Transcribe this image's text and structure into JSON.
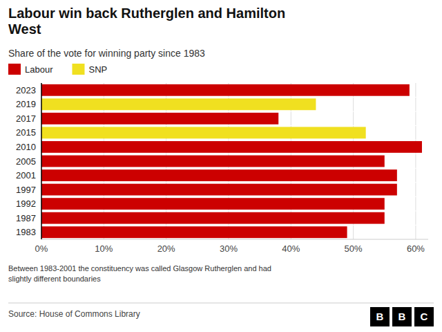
{
  "chart_data": {
    "type": "bar",
    "orientation": "horizontal",
    "title": "Labour win back Rutherglen and Hamilton\nWest",
    "subtitle": "Share of the vote for winning party since 1983",
    "categories": [
      "2023",
      "2019",
      "2017",
      "2015",
      "2010",
      "2005",
      "2001",
      "1997",
      "1992",
      "1987",
      "1983"
    ],
    "series": [
      {
        "name": "Labour",
        "color": "#cc0000",
        "values": [
          59,
          null,
          38,
          null,
          61,
          55,
          57,
          57,
          55,
          55,
          49
        ]
      },
      {
        "name": "SNP",
        "color": "#f0e020",
        "values": [
          null,
          44,
          null,
          52,
          null,
          null,
          null,
          null,
          null,
          null,
          null
        ]
      }
    ],
    "xlim": [
      0,
      62
    ],
    "xticks": [
      {
        "value": 0,
        "label": "0%"
      },
      {
        "value": 10,
        "label": "10%"
      },
      {
        "value": 20,
        "label": "20%"
      },
      {
        "value": 30,
        "label": "30%"
      },
      {
        "value": 40,
        "label": "40%"
      },
      {
        "value": 50,
        "label": "50%"
      },
      {
        "value": 60,
        "label": "60%"
      }
    ],
    "grid": true,
    "legend": "top-left",
    "annotations": [
      "Between 1983-2001 the constituency was called Glasgow Rutherglen and had\nslightly different boundaries",
      "Source: House of Commons Library",
      "BBC"
    ]
  }
}
